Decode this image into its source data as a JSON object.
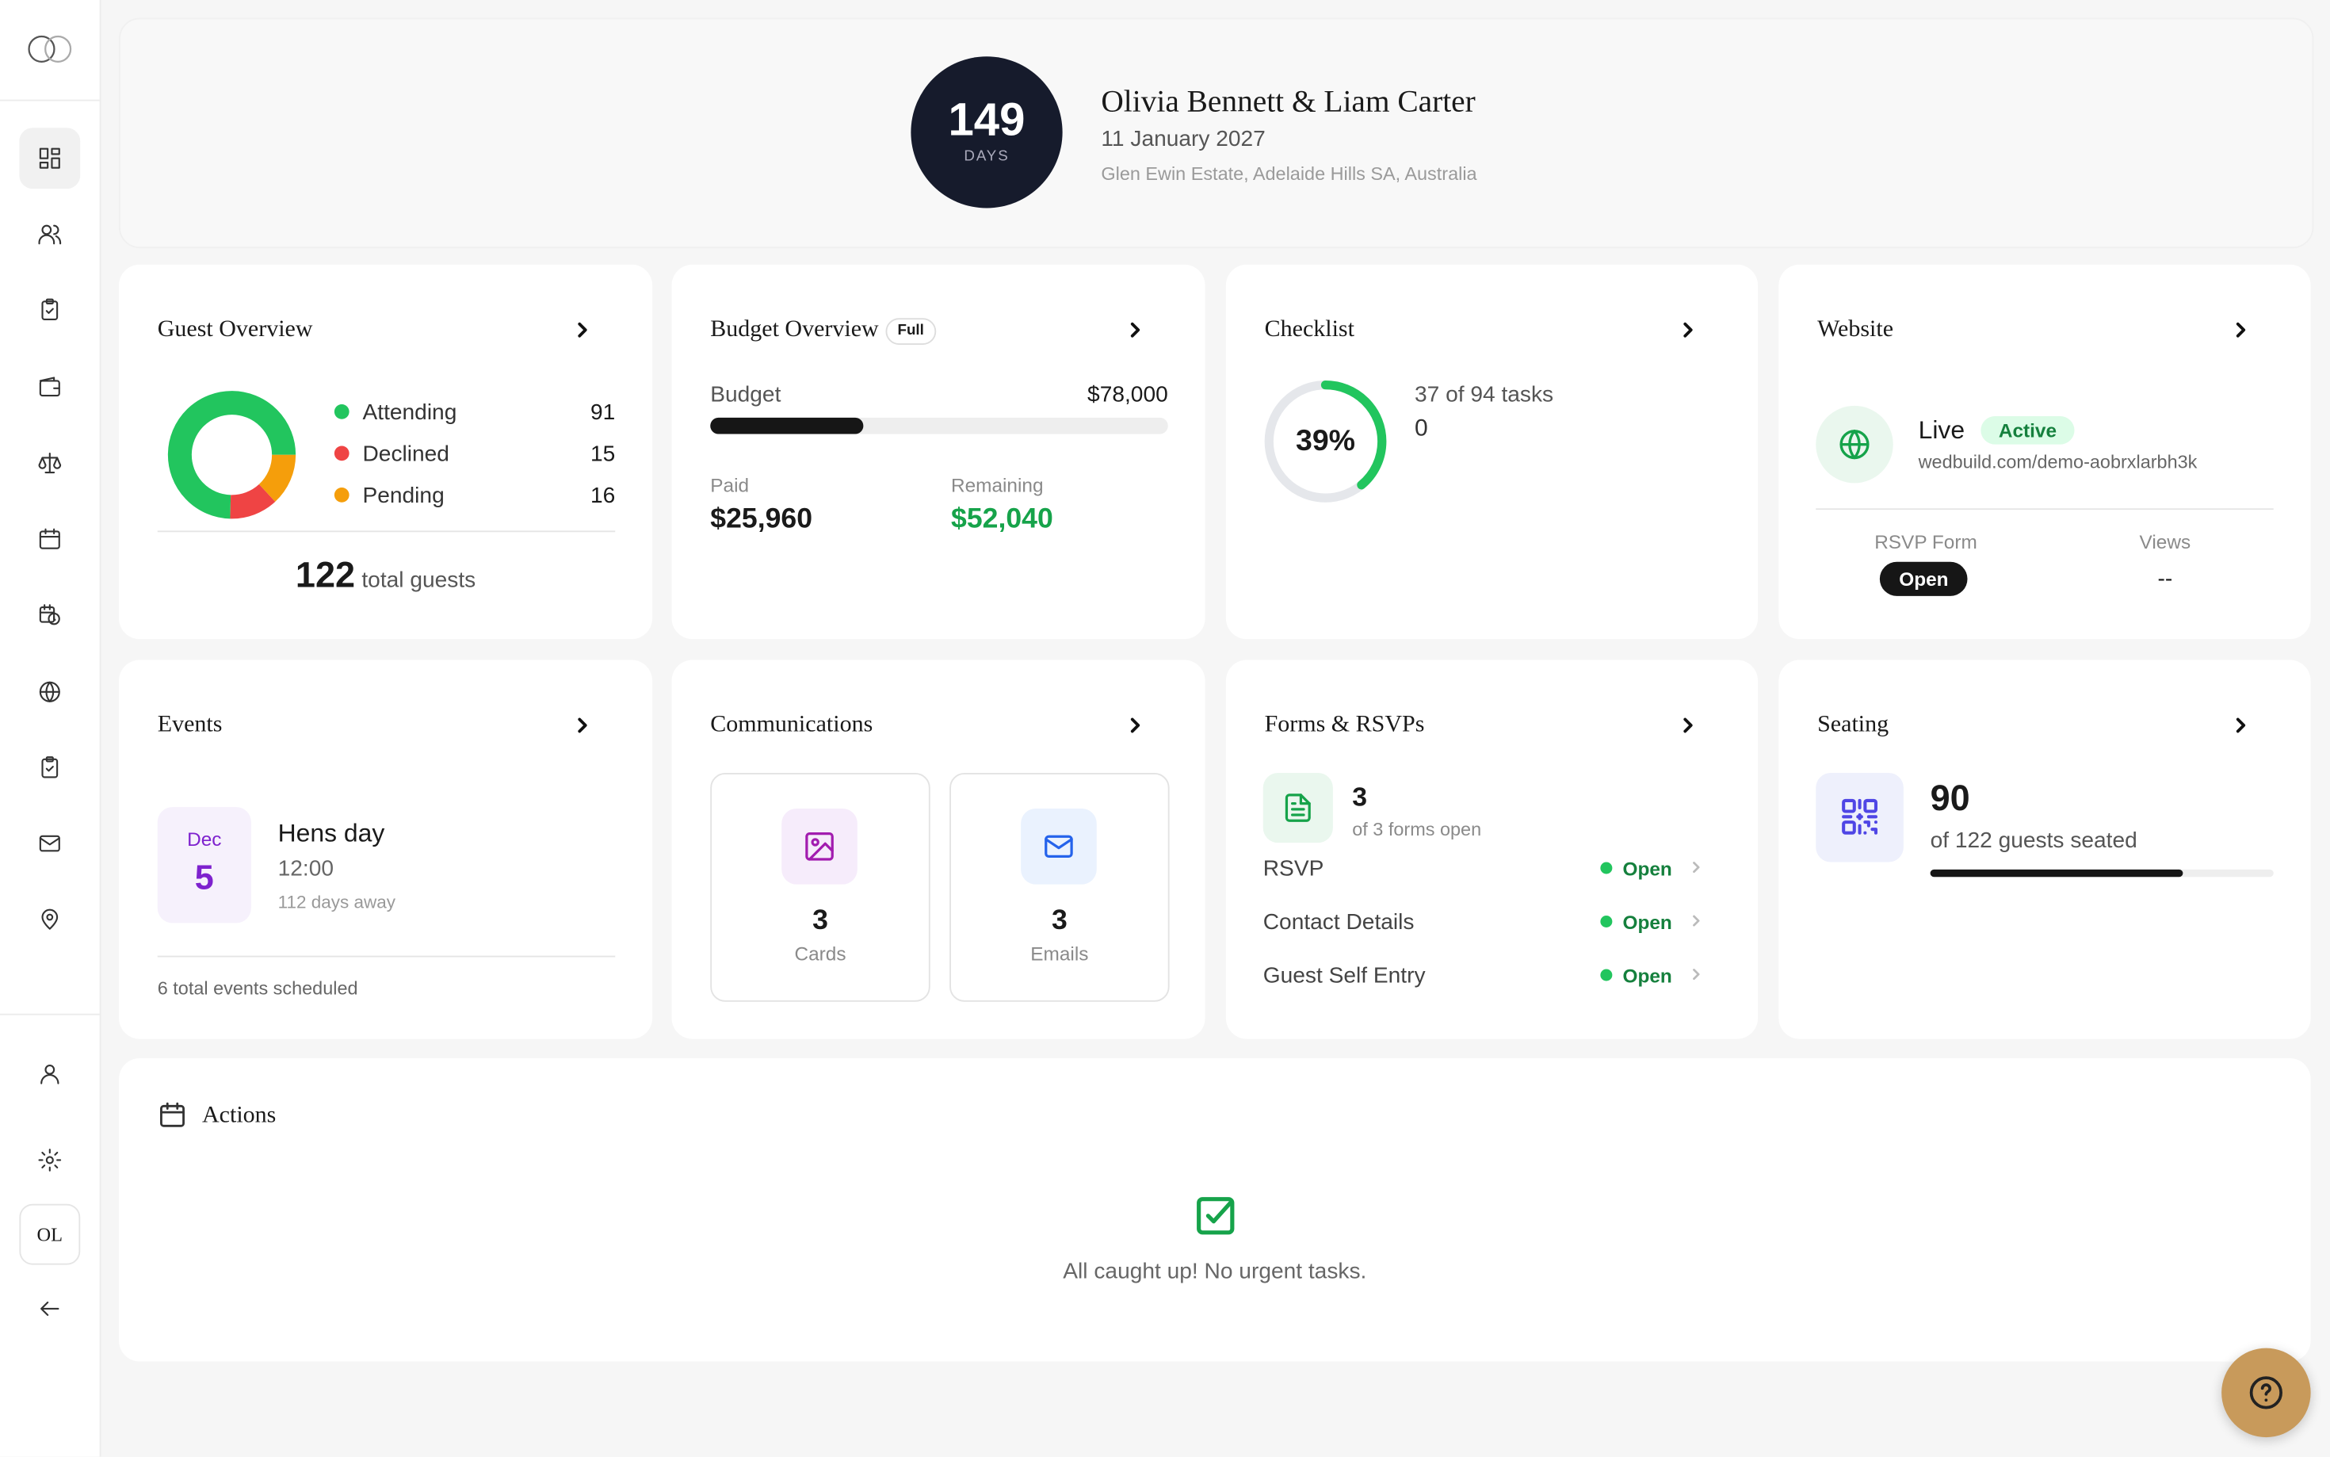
{
  "sidebar": {
    "avatar": "OL"
  },
  "header": {
    "days": 149,
    "days_label": "DAYS",
    "couple": "Olivia Bennett & Liam Carter",
    "date": "11 January 2027",
    "venue": "Glen Ewin Estate, Adelaide Hills SA, Australia"
  },
  "guest_overview": {
    "title": "Guest Overview",
    "items": [
      {
        "label": "Attending",
        "value": 91,
        "color": "#22c55e"
      },
      {
        "label": "Declined",
        "value": 15,
        "color": "#ef4444"
      },
      {
        "label": "Pending",
        "value": 16,
        "color": "#f59e0b"
      }
    ],
    "total": 122,
    "total_label": "total guests"
  },
  "budget": {
    "title": "Budget Overview",
    "badge": "Full",
    "budget_label": "Budget",
    "budget": {
      "value": 78000,
      "label": "$78,000"
    },
    "paid_label": "Paid",
    "paid": {
      "value": 25960,
      "label": "$25,960"
    },
    "remaining_label": "Remaining",
    "remaining": {
      "value": 52040,
      "label": "$52,040"
    }
  },
  "checklist": {
    "title": "Checklist",
    "percent": {
      "value": 39,
      "label": "39%"
    },
    "tasks": "37 of 94 tasks",
    "extra": "0"
  },
  "website": {
    "title": "Website",
    "status": "Live",
    "badge": "Active",
    "url": "wedbuild.com/demo-aobrxlarbh3k",
    "rsvp_label": "RSVP Form",
    "rsvp_status": "Open",
    "views_label": "Views",
    "views": "--"
  },
  "events": {
    "title": "Events",
    "month": "Dec",
    "day": "5",
    "name": "Hens day",
    "time": "12:00",
    "away": "112 days away",
    "footer": "6 total events scheduled"
  },
  "communications": {
    "title": "Communications",
    "cards_count": "3",
    "cards_label": "Cards",
    "emails_count": "3",
    "emails_label": "Emails"
  },
  "forms": {
    "title": "Forms & RSVPs",
    "count": "3",
    "count_label": "of 3 forms open",
    "rows": [
      {
        "name": "RSVP",
        "status": "Open"
      },
      {
        "name": "Contact Details",
        "status": "Open"
      },
      {
        "name": "Guest Self Entry",
        "status": "Open"
      }
    ]
  },
  "seating": {
    "title": "Seating",
    "seated": 90,
    "seated_label": "of 122 guests seated"
  },
  "actions": {
    "title": "Actions",
    "message": "All caught up! No urgent tasks."
  }
}
